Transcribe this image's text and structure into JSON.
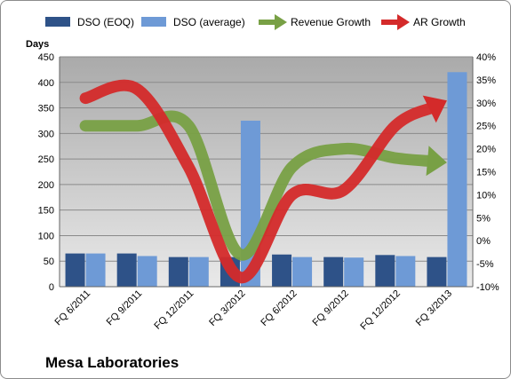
{
  "chart_data": {
    "type": "bar",
    "title": "",
    "left_axis_title": "Days",
    "ylim_left": [
      0,
      450
    ],
    "y_ticks_left": [
      "0",
      "50",
      "100",
      "150",
      "200",
      "250",
      "300",
      "350",
      "400",
      "450"
    ],
    "ylim_right": [
      -0.1,
      0.4
    ],
    "y_ticks_right": [
      "-10%",
      "-5%",
      "0%",
      "5%",
      "10%",
      "15%",
      "20%",
      "25%",
      "30%",
      "35%",
      "40%"
    ],
    "categories": [
      "FQ 6/2011",
      "FQ 9/2011",
      "FQ 12/2011",
      "FQ 3/2012",
      "FQ 6/2012",
      "FQ 9/2012",
      "FQ 12/2012",
      "FQ 3/2013"
    ],
    "grid": true,
    "legend_position": "top",
    "series": [
      {
        "name": "DSO (EOQ)",
        "type": "bar",
        "axis": "left",
        "color": "#2e5288",
        "values": [
          65,
          65,
          58,
          58,
          63,
          58,
          62,
          58
        ]
      },
      {
        "name": "DSO (average)",
        "type": "bar",
        "axis": "left",
        "color": "#6e9ad6",
        "values": [
          65,
          60,
          58,
          325,
          58,
          57,
          60,
          420
        ]
      },
      {
        "name": "Revenue Growth",
        "type": "line-arrow",
        "axis": "right",
        "color": "#78a045",
        "values": [
          0.25,
          0.25,
          0.25,
          -0.03,
          0.16,
          0.2,
          0.18,
          0.17
        ]
      },
      {
        "name": "AR Growth",
        "type": "line-arrow",
        "axis": "right",
        "color": "#d42a2a",
        "values": [
          0.31,
          0.33,
          0.16,
          -0.08,
          0.1,
          0.11,
          0.25,
          0.305
        ]
      }
    ]
  },
  "footer": {
    "title": "Mesa Laboratories"
  }
}
